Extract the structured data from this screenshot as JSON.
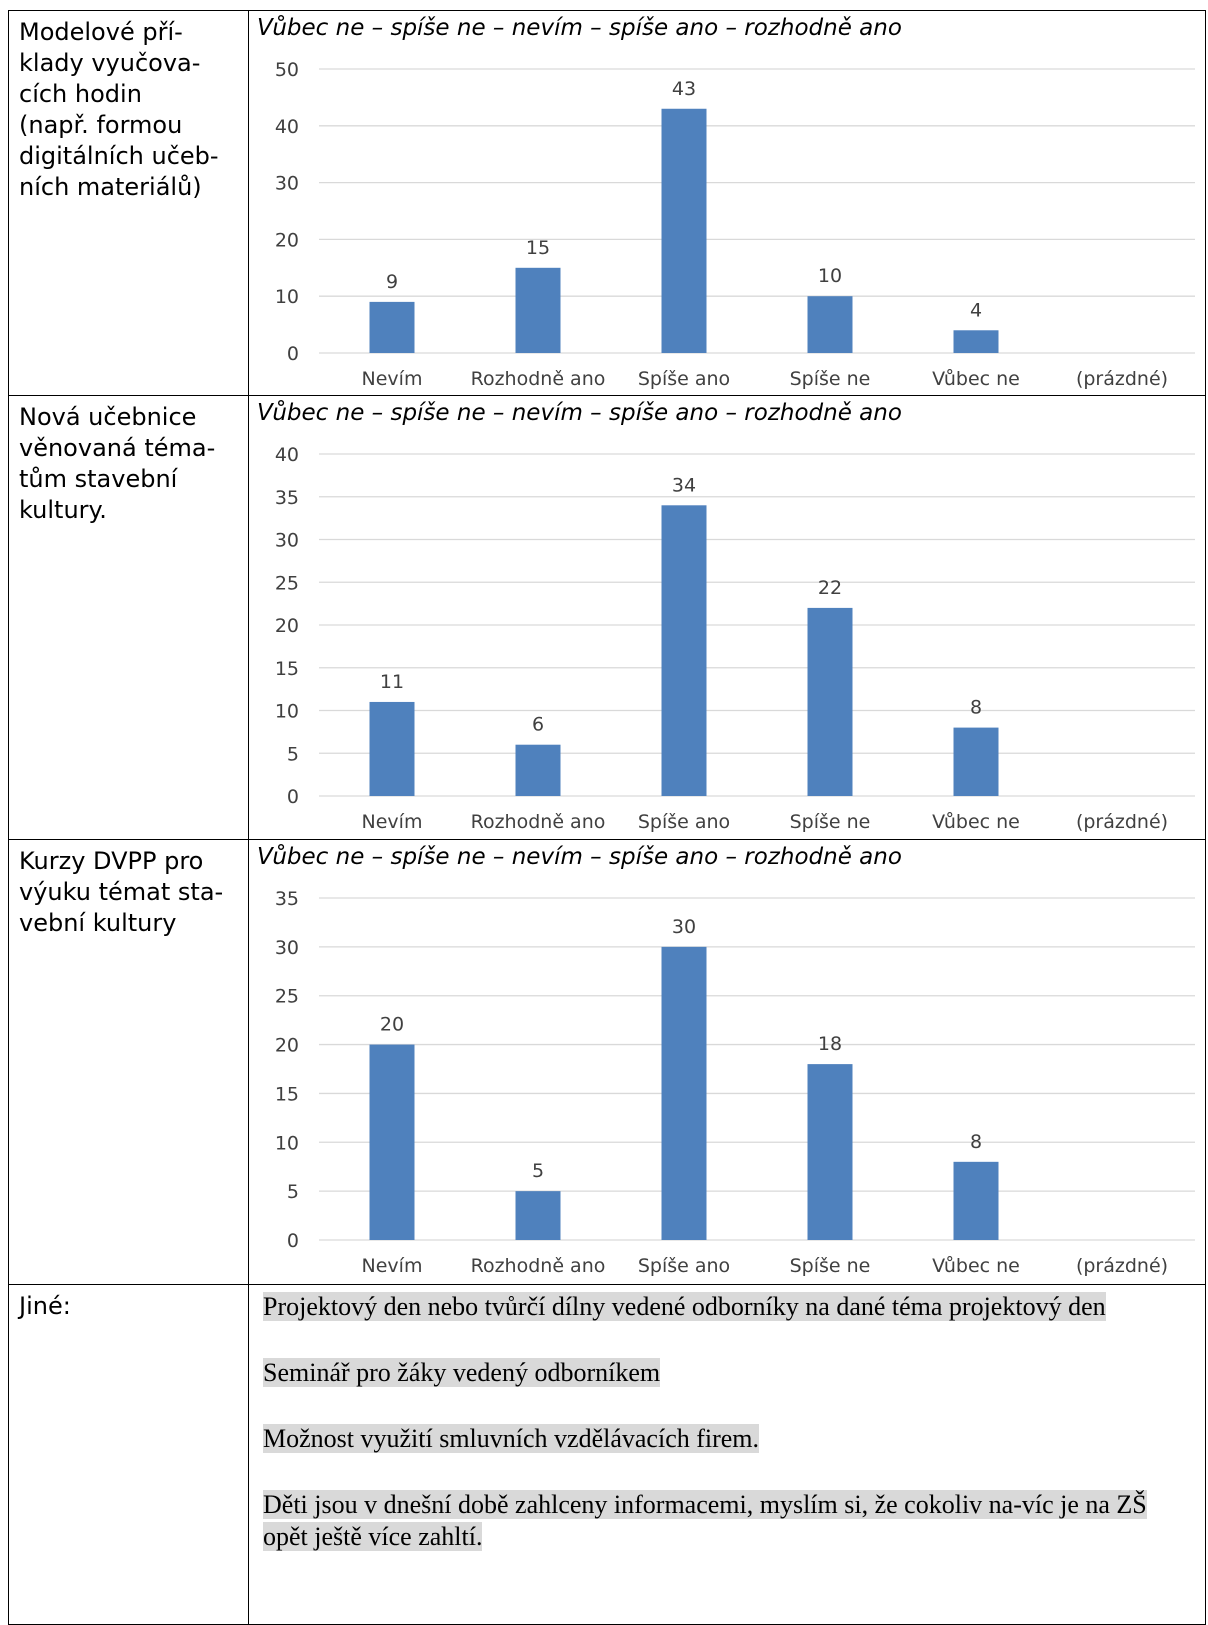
{
  "rows": [
    {
      "label": "Modelové pří-\nklady vyučova-\ncích hodin\n(např. formou\ndigitálních učeb-\nních materiálů)",
      "scale": "Vůbec ne – spíše ne – nevím – spíše ano – rozhodně ano"
    },
    {
      "label": "Nová učebnice\nvěnovaná téma-\ntům stavební\nkultury.",
      "scale": "Vůbec ne – spíše ne – nevím – spíše ano – rozhodně ano"
    },
    {
      "label": "Kurzy DVPP pro\nvýuku témat sta-\nvební kultury",
      "scale": "Vůbec ne – spíše ne – nevím – spíše ano – rozhodně ano"
    },
    {
      "label": "Jiné:",
      "answers": [
        "Projektový den nebo tvůrčí dílny vedené odborníky na dané téma projektový den",
        "Seminář pro žáky vedený odborníkem",
        "Možnost využití smluvních vzdělávacích firem.",
        "Děti jsou v dnešní době zahlceny informacemi, myslím si, že cokoliv na-víc je na ZŠ opět ještě více zahltí."
      ]
    }
  ],
  "colors": {
    "bar": "#4f81bd",
    "grid": "#d9d9d9",
    "axis_text": "#404040"
  },
  "chart_data": [
    {
      "type": "bar",
      "categories": [
        "Nevím",
        "Rozhodně ano",
        "Spíše ano",
        "Spíše ne",
        "Vůbec ne",
        "(prázdné)"
      ],
      "values": [
        9,
        15,
        43,
        10,
        4,
        null
      ],
      "ylim": [
        0,
        50
      ],
      "yticks": [
        0,
        10,
        20,
        30,
        40,
        50
      ],
      "grid": true
    },
    {
      "type": "bar",
      "categories": [
        "Nevím",
        "Rozhodně ano",
        "Spíše ano",
        "Spíše ne",
        "Vůbec ne",
        "(prázdné)"
      ],
      "values": [
        11,
        6,
        34,
        22,
        8,
        null
      ],
      "ylim": [
        0,
        40
      ],
      "yticks": [
        0,
        5,
        10,
        15,
        20,
        25,
        30,
        35,
        40
      ],
      "grid": true
    },
    {
      "type": "bar",
      "categories": [
        "Nevím",
        "Rozhodně ano",
        "Spíše ano",
        "Spíše ne",
        "Vůbec ne",
        "(prázdné)"
      ],
      "values": [
        20,
        5,
        30,
        18,
        8,
        null
      ],
      "ylim": [
        0,
        35
      ],
      "yticks": [
        0,
        5,
        10,
        15,
        20,
        25,
        30,
        35
      ],
      "grid": true
    }
  ]
}
